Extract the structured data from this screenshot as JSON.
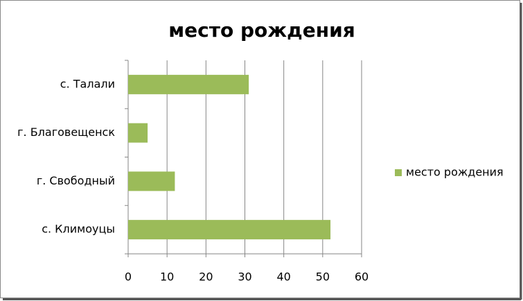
{
  "chart_data": {
    "type": "bar",
    "orientation": "horizontal",
    "title": "место рождения",
    "categories": [
      "с. Талали",
      "г. Благовещенск",
      "г. Свободный",
      "с. Климоуцы"
    ],
    "series": [
      {
        "name": "место рождения",
        "color": "#9bbb59",
        "values": [
          31,
          5,
          12,
          52
        ]
      }
    ],
    "xlim": [
      0,
      60
    ],
    "xticks": [
      0,
      10,
      20,
      30,
      40,
      50,
      60
    ],
    "grid": true,
    "legend": "right"
  }
}
